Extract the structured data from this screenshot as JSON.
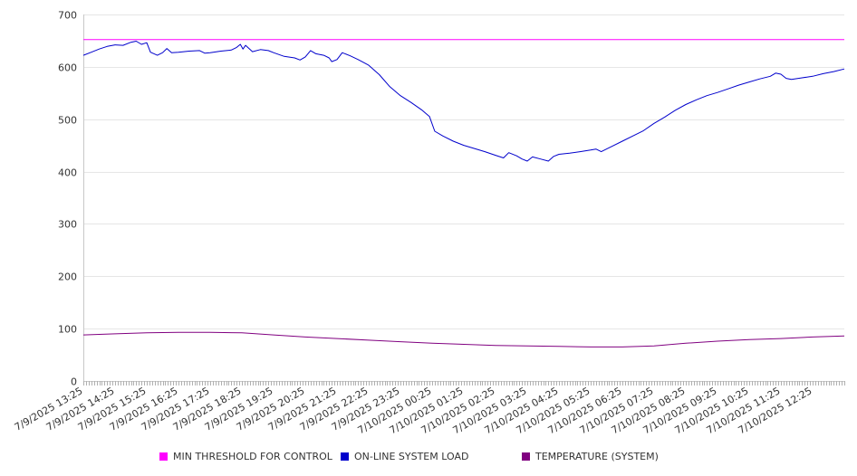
{
  "chart_data": {
    "type": "line",
    "title": "",
    "xlabel": "",
    "ylabel": "",
    "ylim": [
      0,
      700
    ],
    "yticks": [
      0,
      100,
      200,
      300,
      400,
      500,
      600,
      700
    ],
    "grid": true,
    "legend_position": "bottom",
    "x_tick_labels": [
      "7/9/2025 13:25",
      "7/9/2025 14:25",
      "7/9/2025 15:25",
      "7/9/2025 16:25",
      "7/9/2025 17:25",
      "7/9/2025 18:25",
      "7/9/2025 19:25",
      "7/9/2025 20:25",
      "7/9/2025 21:25",
      "7/9/2025 22:25",
      "7/9/2025 23:25",
      "7/10/2025 00:25",
      "7/10/2025 01:25",
      "7/10/2025 02:25",
      "7/10/2025 03:25",
      "7/10/2025 04:25",
      "7/10/2025 05:25",
      "7/10/2025 06:25",
      "7/10/2025 07:25",
      "7/10/2025 08:25",
      "7/10/2025 09:25",
      "7/10/2025 10:25",
      "7/10/2025 11:25",
      "7/10/2025 12:25"
    ],
    "x_range": [
      "7/9/2025 13:25",
      "7/10/2025 13:25"
    ],
    "series": [
      {
        "name": "MIN THRESHOLD FOR CONTROL",
        "color": "#ff00ff",
        "points": [
          [
            "7/9/2025 13:25",
            652
          ],
          [
            "7/10/2025 13:25",
            652
          ]
        ]
      },
      {
        "name": "ON-LINE SYSTEM LOAD",
        "color": "#0000cc",
        "points": [
          [
            "7/9/2025 13:25",
            622
          ],
          [
            "7/9/2025 13:40",
            628
          ],
          [
            "7/9/2025 13:55",
            634
          ],
          [
            "7/9/2025 14:10",
            639
          ],
          [
            "7/9/2025 14:25",
            642
          ],
          [
            "7/9/2025 14:40",
            641
          ],
          [
            "7/9/2025 14:55",
            647
          ],
          [
            "7/9/2025 15:05",
            649
          ],
          [
            "7/9/2025 15:15",
            643
          ],
          [
            "7/9/2025 15:25",
            646
          ],
          [
            "7/9/2025 15:32",
            628
          ],
          [
            "7/9/2025 15:45",
            622
          ],
          [
            "7/9/2025 15:55",
            627
          ],
          [
            "7/9/2025 16:03",
            635
          ],
          [
            "7/9/2025 16:12",
            627
          ],
          [
            "7/9/2025 16:25",
            628
          ],
          [
            "7/9/2025 16:45",
            630
          ],
          [
            "7/9/2025 17:05",
            631
          ],
          [
            "7/9/2025 17:15",
            626
          ],
          [
            "7/9/2025 17:25",
            627
          ],
          [
            "7/9/2025 17:45",
            630
          ],
          [
            "7/9/2025 18:05",
            632
          ],
          [
            "7/9/2025 18:15",
            637
          ],
          [
            "7/9/2025 18:22",
            643
          ],
          [
            "7/9/2025 18:27",
            634
          ],
          [
            "7/9/2025 18:32",
            641
          ],
          [
            "7/9/2025 18:45",
            629
          ],
          [
            "7/9/2025 19:00",
            633
          ],
          [
            "7/9/2025 19:15",
            631
          ],
          [
            "7/9/2025 19:25",
            627
          ],
          [
            "7/9/2025 19:45",
            620
          ],
          [
            "7/9/2025 20:05",
            617
          ],
          [
            "7/9/2025 20:15",
            613
          ],
          [
            "7/9/2025 20:25",
            619
          ],
          [
            "7/9/2025 20:35",
            631
          ],
          [
            "7/9/2025 20:45",
            625
          ],
          [
            "7/9/2025 21:00",
            622
          ],
          [
            "7/9/2025 21:10",
            617
          ],
          [
            "7/9/2025 21:15",
            610
          ],
          [
            "7/9/2025 21:25",
            614
          ],
          [
            "7/9/2025 21:35",
            627
          ],
          [
            "7/9/2025 21:50",
            621
          ],
          [
            "7/9/2025 22:05",
            614
          ],
          [
            "7/9/2025 22:25",
            603
          ],
          [
            "7/9/2025 22:45",
            585
          ],
          [
            "7/9/2025 23:05",
            562
          ],
          [
            "7/9/2025 23:25",
            545
          ],
          [
            "7/9/2025 23:45",
            532
          ],
          [
            "7/10/2025 00:05",
            518
          ],
          [
            "7/10/2025 00:20",
            505
          ],
          [
            "7/10/2025 00:30",
            477
          ],
          [
            "7/10/2025 00:45",
            468
          ],
          [
            "7/10/2025 01:05",
            458
          ],
          [
            "7/10/2025 01:25",
            450
          ],
          [
            "7/10/2025 01:45",
            444
          ],
          [
            "7/10/2025 02:05",
            438
          ],
          [
            "7/10/2025 02:25",
            431
          ],
          [
            "7/10/2025 02:40",
            426
          ],
          [
            "7/10/2025 02:50",
            436
          ],
          [
            "7/10/2025 03:05",
            430
          ],
          [
            "7/10/2025 03:15",
            424
          ],
          [
            "7/10/2025 03:25",
            420
          ],
          [
            "7/10/2025 03:35",
            428
          ],
          [
            "7/10/2025 03:50",
            424
          ],
          [
            "7/10/2025 04:05",
            420
          ],
          [
            "7/10/2025 04:15",
            429
          ],
          [
            "7/10/2025 04:25",
            433
          ],
          [
            "7/10/2025 04:45",
            435
          ],
          [
            "7/10/2025 05:05",
            438
          ],
          [
            "7/10/2025 05:25",
            441
          ],
          [
            "7/10/2025 05:35",
            443
          ],
          [
            "7/10/2025 05:45",
            438
          ],
          [
            "7/10/2025 06:05",
            448
          ],
          [
            "7/10/2025 06:25",
            458
          ],
          [
            "7/10/2025 06:45",
            468
          ],
          [
            "7/10/2025 07:05",
            478
          ],
          [
            "7/10/2025 07:25",
            492
          ],
          [
            "7/10/2025 07:45",
            504
          ],
          [
            "7/10/2025 08:05",
            517
          ],
          [
            "7/10/2025 08:25",
            528
          ],
          [
            "7/10/2025 08:45",
            537
          ],
          [
            "7/10/2025 09:05",
            545
          ],
          [
            "7/10/2025 09:25",
            551
          ],
          [
            "7/10/2025 09:45",
            558
          ],
          [
            "7/10/2025 10:05",
            565
          ],
          [
            "7/10/2025 10:25",
            571
          ],
          [
            "7/10/2025 10:45",
            577
          ],
          [
            "7/10/2025 11:05",
            582
          ],
          [
            "7/10/2025 11:15",
            588
          ],
          [
            "7/10/2025 11:25",
            586
          ],
          [
            "7/10/2025 11:35",
            578
          ],
          [
            "7/10/2025 11:45",
            576
          ],
          [
            "7/10/2025 12:05",
            579
          ],
          [
            "7/10/2025 12:25",
            582
          ],
          [
            "7/10/2025 12:45",
            587
          ],
          [
            "7/10/2025 13:05",
            591
          ],
          [
            "7/10/2025 13:25",
            596
          ]
        ]
      },
      {
        "name": "TEMPERATURE (SYSTEM)",
        "color": "#800080",
        "points": [
          [
            "7/9/2025 13:25",
            88
          ],
          [
            "7/9/2025 14:25",
            90
          ],
          [
            "7/9/2025 15:25",
            92
          ],
          [
            "7/9/2025 16:25",
            93
          ],
          [
            "7/9/2025 17:25",
            93
          ],
          [
            "7/9/2025 18:25",
            92
          ],
          [
            "7/9/2025 19:25",
            88
          ],
          [
            "7/9/2025 20:25",
            84
          ],
          [
            "7/9/2025 21:25",
            81
          ],
          [
            "7/9/2025 22:25",
            78
          ],
          [
            "7/9/2025 23:25",
            75
          ],
          [
            "7/10/2025 00:25",
            72
          ],
          [
            "7/10/2025 01:25",
            70
          ],
          [
            "7/10/2025 02:25",
            68
          ],
          [
            "7/10/2025 03:25",
            67
          ],
          [
            "7/10/2025 04:25",
            66
          ],
          [
            "7/10/2025 05:25",
            65
          ],
          [
            "7/10/2025 06:25",
            65
          ],
          [
            "7/10/2025 07:25",
            67
          ],
          [
            "7/10/2025 08:25",
            72
          ],
          [
            "7/10/2025 09:25",
            76
          ],
          [
            "7/10/2025 10:25",
            79
          ],
          [
            "7/10/2025 11:25",
            81
          ],
          [
            "7/10/2025 12:25",
            84
          ],
          [
            "7/10/2025 13:25",
            86
          ]
        ]
      }
    ]
  }
}
